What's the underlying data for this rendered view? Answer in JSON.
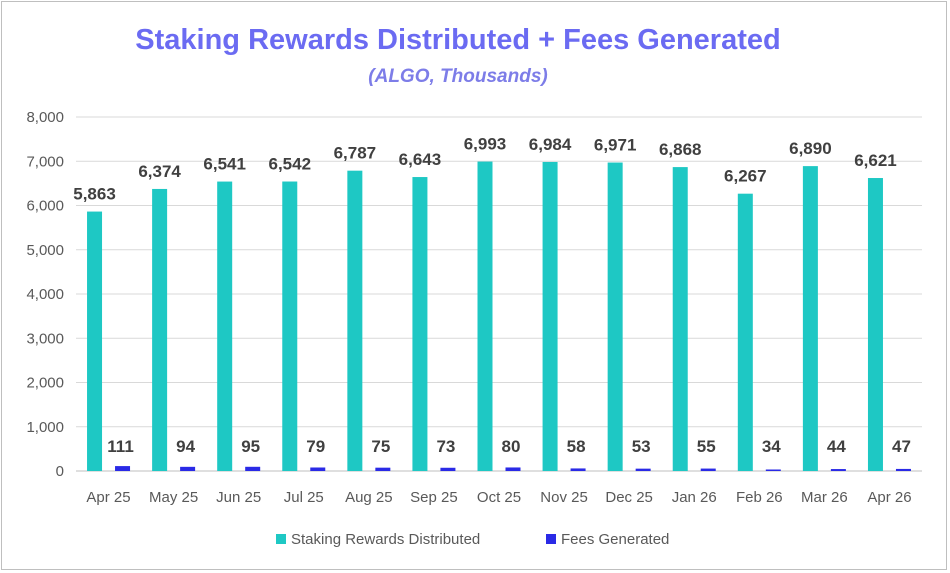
{
  "chart_data": {
    "type": "bar",
    "title": "Staking Rewards Distributed + Fees Generated",
    "subtitle": "(ALGO, Thousands)",
    "xlabel": "",
    "ylabel": "",
    "ylim": [
      0,
      8000
    ],
    "yticks": [
      "0",
      "1,000",
      "2,000",
      "3,000",
      "4,000",
      "5,000",
      "6,000",
      "7,000",
      "8,000"
    ],
    "grid": true,
    "legend_position": "bottom",
    "categories": [
      "Apr 25",
      "May 25",
      "Jun 25",
      "Jul 25",
      "Aug 25",
      "Sep 25",
      "Oct 25",
      "Nov 25",
      "Dec 25",
      "Jan 26",
      "Feb 26",
      "Mar 26",
      "Apr 26"
    ],
    "series": [
      {
        "name": "Staking Rewards Distributed",
        "color": "#1ec8c4",
        "values": [
          5863,
          6374,
          6541,
          6542,
          6787,
          6643,
          6993,
          6984,
          6971,
          6868,
          6267,
          6890,
          6621
        ],
        "labels": [
          "5,863",
          "6,374",
          "6,541",
          "6,542",
          "6,787",
          "6,643",
          "6,993",
          "6,984",
          "6,971",
          "6,868",
          "6,267",
          "6,890",
          "6,621"
        ]
      },
      {
        "name": "Fees Generated",
        "color": "#2a2ae6",
        "values": [
          111,
          94,
          95,
          79,
          75,
          73,
          80,
          58,
          53,
          55,
          34,
          44,
          47
        ],
        "labels": [
          "111",
          "94",
          "95",
          "79",
          "75",
          "73",
          "80",
          "58",
          "53",
          "55",
          "34",
          "44",
          "47"
        ]
      }
    ]
  }
}
